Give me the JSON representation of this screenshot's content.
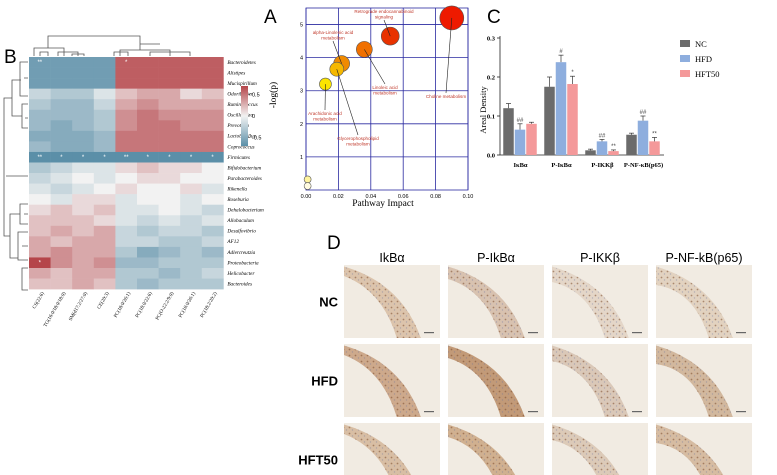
{
  "panels": {
    "A": "A",
    "B": "B",
    "C": "C",
    "D": "D"
  },
  "chart_data": [
    {
      "type": "heatmap",
      "panel": "B",
      "rows": [
        "Bacteroidetes",
        "Alistipes",
        "Mucispirillum",
        "Odoribacter",
        "Ruminococcus",
        "Oscillospira",
        "Prevotella",
        "Lactobacillus",
        "Coprococcus",
        "Firmicutes",
        "Bifidobacterium",
        "Parabacteroides",
        "Rikenella",
        "Roseburia",
        "Dehalobacterium",
        "Allobaculum",
        "Desulfovibrio",
        "AF12",
        "Adlercreutzia",
        "Proteobacteria",
        "Helicobacter",
        "Bacteroides"
      ],
      "columns": [
        "CS(22:6)",
        "TG(16:0/18:0/18:0)",
        "SM(d17:2/27:0)",
        "CE(20:3)",
        "PC(18:0/26:1)",
        "PC(18:0/22:6)",
        "PC(O-22:2/9:0)",
        "PC(16:0/26:1)",
        "PC(18:2/20:2)"
      ],
      "values": [
        [
          -0.6,
          -0.6,
          -0.6,
          -0.6,
          0.6,
          0.6,
          0.6,
          0.6,
          0.6
        ],
        [
          -0.6,
          -0.6,
          -0.6,
          -0.6,
          0.6,
          0.6,
          0.6,
          0.6,
          0.6
        ],
        [
          -0.6,
          -0.6,
          -0.6,
          -0.6,
          0.6,
          0.6,
          0.6,
          0.6,
          0.6
        ],
        [
          -0.2,
          -0.3,
          -0.3,
          -0.1,
          0.2,
          0.3,
          0.3,
          0.1,
          0.2
        ],
        [
          -0.3,
          -0.4,
          -0.4,
          -0.2,
          0.3,
          0.4,
          0.3,
          0.3,
          0.3
        ],
        [
          -0.4,
          -0.4,
          -0.4,
          -0.3,
          0.4,
          0.5,
          0.4,
          0.4,
          0.4
        ],
        [
          -0.4,
          -0.5,
          -0.4,
          -0.3,
          0.4,
          0.5,
          0.5,
          0.4,
          0.4
        ],
        [
          -0.5,
          -0.5,
          -0.5,
          -0.4,
          0.5,
          0.5,
          0.5,
          0.5,
          0.5
        ],
        [
          -0.4,
          -0.5,
          -0.5,
          -0.4,
          0.5,
          0.5,
          0.5,
          0.5,
          0.5
        ],
        [
          -0.7,
          -0.7,
          -0.7,
          -0.7,
          -0.7,
          -0.7,
          -0.7,
          -0.7,
          -0.7
        ],
        [
          -0.3,
          -0.2,
          -0.1,
          -0.1,
          0.1,
          0.2,
          0.1,
          0.1,
          0.0
        ],
        [
          -0.2,
          -0.1,
          0.0,
          -0.1,
          0.0,
          0.1,
          0.1,
          0.0,
          0.0
        ],
        [
          -0.1,
          -0.2,
          -0.1,
          0.0,
          0.1,
          0.0,
          0.0,
          0.1,
          -0.1
        ],
        [
          0.0,
          -0.1,
          0.1,
          0.1,
          -0.1,
          0.0,
          0.0,
          -0.1,
          0.0
        ],
        [
          0.1,
          0.2,
          0.1,
          0.2,
          -0.1,
          -0.1,
          0.0,
          -0.1,
          -0.2
        ],
        [
          0.2,
          0.2,
          0.2,
          0.1,
          -0.1,
          -0.2,
          -0.1,
          -0.2,
          -0.1
        ],
        [
          0.2,
          0.3,
          0.2,
          0.3,
          -0.2,
          -0.3,
          -0.2,
          -0.2,
          -0.3
        ],
        [
          0.3,
          0.2,
          0.3,
          0.3,
          -0.2,
          -0.2,
          -0.3,
          -0.3,
          -0.2
        ],
        [
          0.3,
          0.4,
          0.3,
          0.3,
          -0.3,
          -0.5,
          -0.4,
          -0.3,
          -0.4
        ],
        [
          0.7,
          0.4,
          0.3,
          0.4,
          -0.4,
          -0.4,
          -0.3,
          -0.3,
          -0.3
        ],
        [
          0.3,
          0.2,
          0.3,
          0.3,
          -0.3,
          -0.3,
          -0.4,
          -0.3,
          -0.2
        ],
        [
          0.2,
          0.2,
          0.3,
          0.2,
          -0.3,
          -0.4,
          -0.3,
          -0.3,
          -0.3
        ]
      ],
      "significance": [
        [
          "**",
          "",
          "",
          "",
          "*",
          "",
          "",
          "",
          ""
        ],
        [
          "**",
          "*",
          "*",
          "*",
          "**",
          "*",
          "*",
          "*",
          "*"
        ],
        [
          "*",
          "",
          "",
          "",
          "",
          "",
          "",
          "",
          ""
        ]
      ],
      "significance_rows": [
        "Bacteroidetes",
        "Firmicutes",
        "Proteobacteria"
      ],
      "colorbar": {
        "ticks": [
          "0.5",
          "0",
          "-0.5"
        ],
        "range": [
          -0.7,
          0.7
        ],
        "low_color": "#5b8fa8",
        "mid_color": "#f2f2f2",
        "high_color": "#b5454a"
      }
    },
    {
      "type": "scatter",
      "panel": "A",
      "xlabel": "Pathway Impact",
      "ylabel": "-log(p)",
      "xlim": [
        0,
        0.1
      ],
      "ylim": [
        0,
        5.5
      ],
      "xticks": [
        "0.00",
        "0.02",
        "0.04",
        "0.06",
        "0.08",
        "0.10"
      ],
      "yticks": [
        "1",
        "2",
        "3",
        "4",
        "5"
      ],
      "points": [
        {
          "name": "Retrograde endocannabinoid signaling",
          "x": 0.052,
          "y": 4.65,
          "size": 9,
          "color": "#e83200"
        },
        {
          "name": "Choline metabolism",
          "x": 0.09,
          "y": 5.2,
          "size": 12,
          "color": "#ee1a00"
        },
        {
          "name": "alpha-Linolenic acid metabolism",
          "x": 0.022,
          "y": 3.82,
          "size": 8,
          "color": "#f08a00"
        },
        {
          "name": "Linoleic acid metabolism",
          "x": 0.036,
          "y": 4.25,
          "size": 8,
          "color": "#f07000"
        },
        {
          "name": "Glycerophospholipid metabolism",
          "x": 0.019,
          "y": 3.65,
          "size": 7,
          "color": "#f6b800"
        },
        {
          "name": "Arachidonic acid metabolism",
          "x": 0.012,
          "y": 3.2,
          "size": 6,
          "color": "#fbe400"
        },
        {
          "name": "",
          "x": 0.001,
          "y": 0.32,
          "size": 3.5,
          "color": "#fff4a0"
        },
        {
          "name": "",
          "x": 0.001,
          "y": 0.12,
          "size": 3.5,
          "color": "#fffbe0"
        }
      ],
      "labels": {
        "retro": "Retrograde endocannabinoid signaling",
        "alin": "alpha-Linolenic acid metabolism",
        "choline": "Choline metabolism",
        "linoleic": "Linoleic acid metabolism",
        "glycero": "Glycerophospholipid metabolism",
        "arach": "Arachidonic acid metabolism"
      }
    },
    {
      "type": "bar",
      "panel": "C",
      "ylabel": "Areal Density",
      "ylim": [
        0,
        0.3
      ],
      "yticks": [
        "0.0",
        "0.1",
        "0.2",
        "0.3"
      ],
      "categories": [
        "IκBα",
        "P-IκBα",
        "P-IKKβ",
        "P-NF-κB(p65)"
      ],
      "series": [
        {
          "name": "NC",
          "color": "#6b6b6b",
          "values": [
            0.12,
            0.175,
            0.012,
            0.052
          ],
          "errors": [
            0.012,
            0.025,
            0.003,
            0.004
          ],
          "sig": [
            "",
            "",
            "",
            ""
          ]
        },
        {
          "name": "HFD",
          "color": "#8eaede",
          "values": [
            0.065,
            0.238,
            0.035,
            0.088
          ],
          "errors": [
            0.015,
            0.018,
            0.005,
            0.012
          ],
          "sig": [
            "##",
            "#",
            "##",
            "##"
          ]
        },
        {
          "name": "HFT50",
          "color": "#f4999a",
          "values": [
            0.08,
            0.182,
            0.01,
            0.035
          ],
          "errors": [
            0.004,
            0.02,
            0.003,
            0.01
          ],
          "sig": [
            "",
            "*",
            "**",
            "**"
          ]
        }
      ]
    }
  ],
  "panel_d": {
    "columns": [
      "IkBα",
      "P-IkBα",
      "P-IKKβ",
      "P-NF-kB(p65)"
    ],
    "rows": [
      "NC",
      "HFD",
      "HFT50"
    ]
  }
}
